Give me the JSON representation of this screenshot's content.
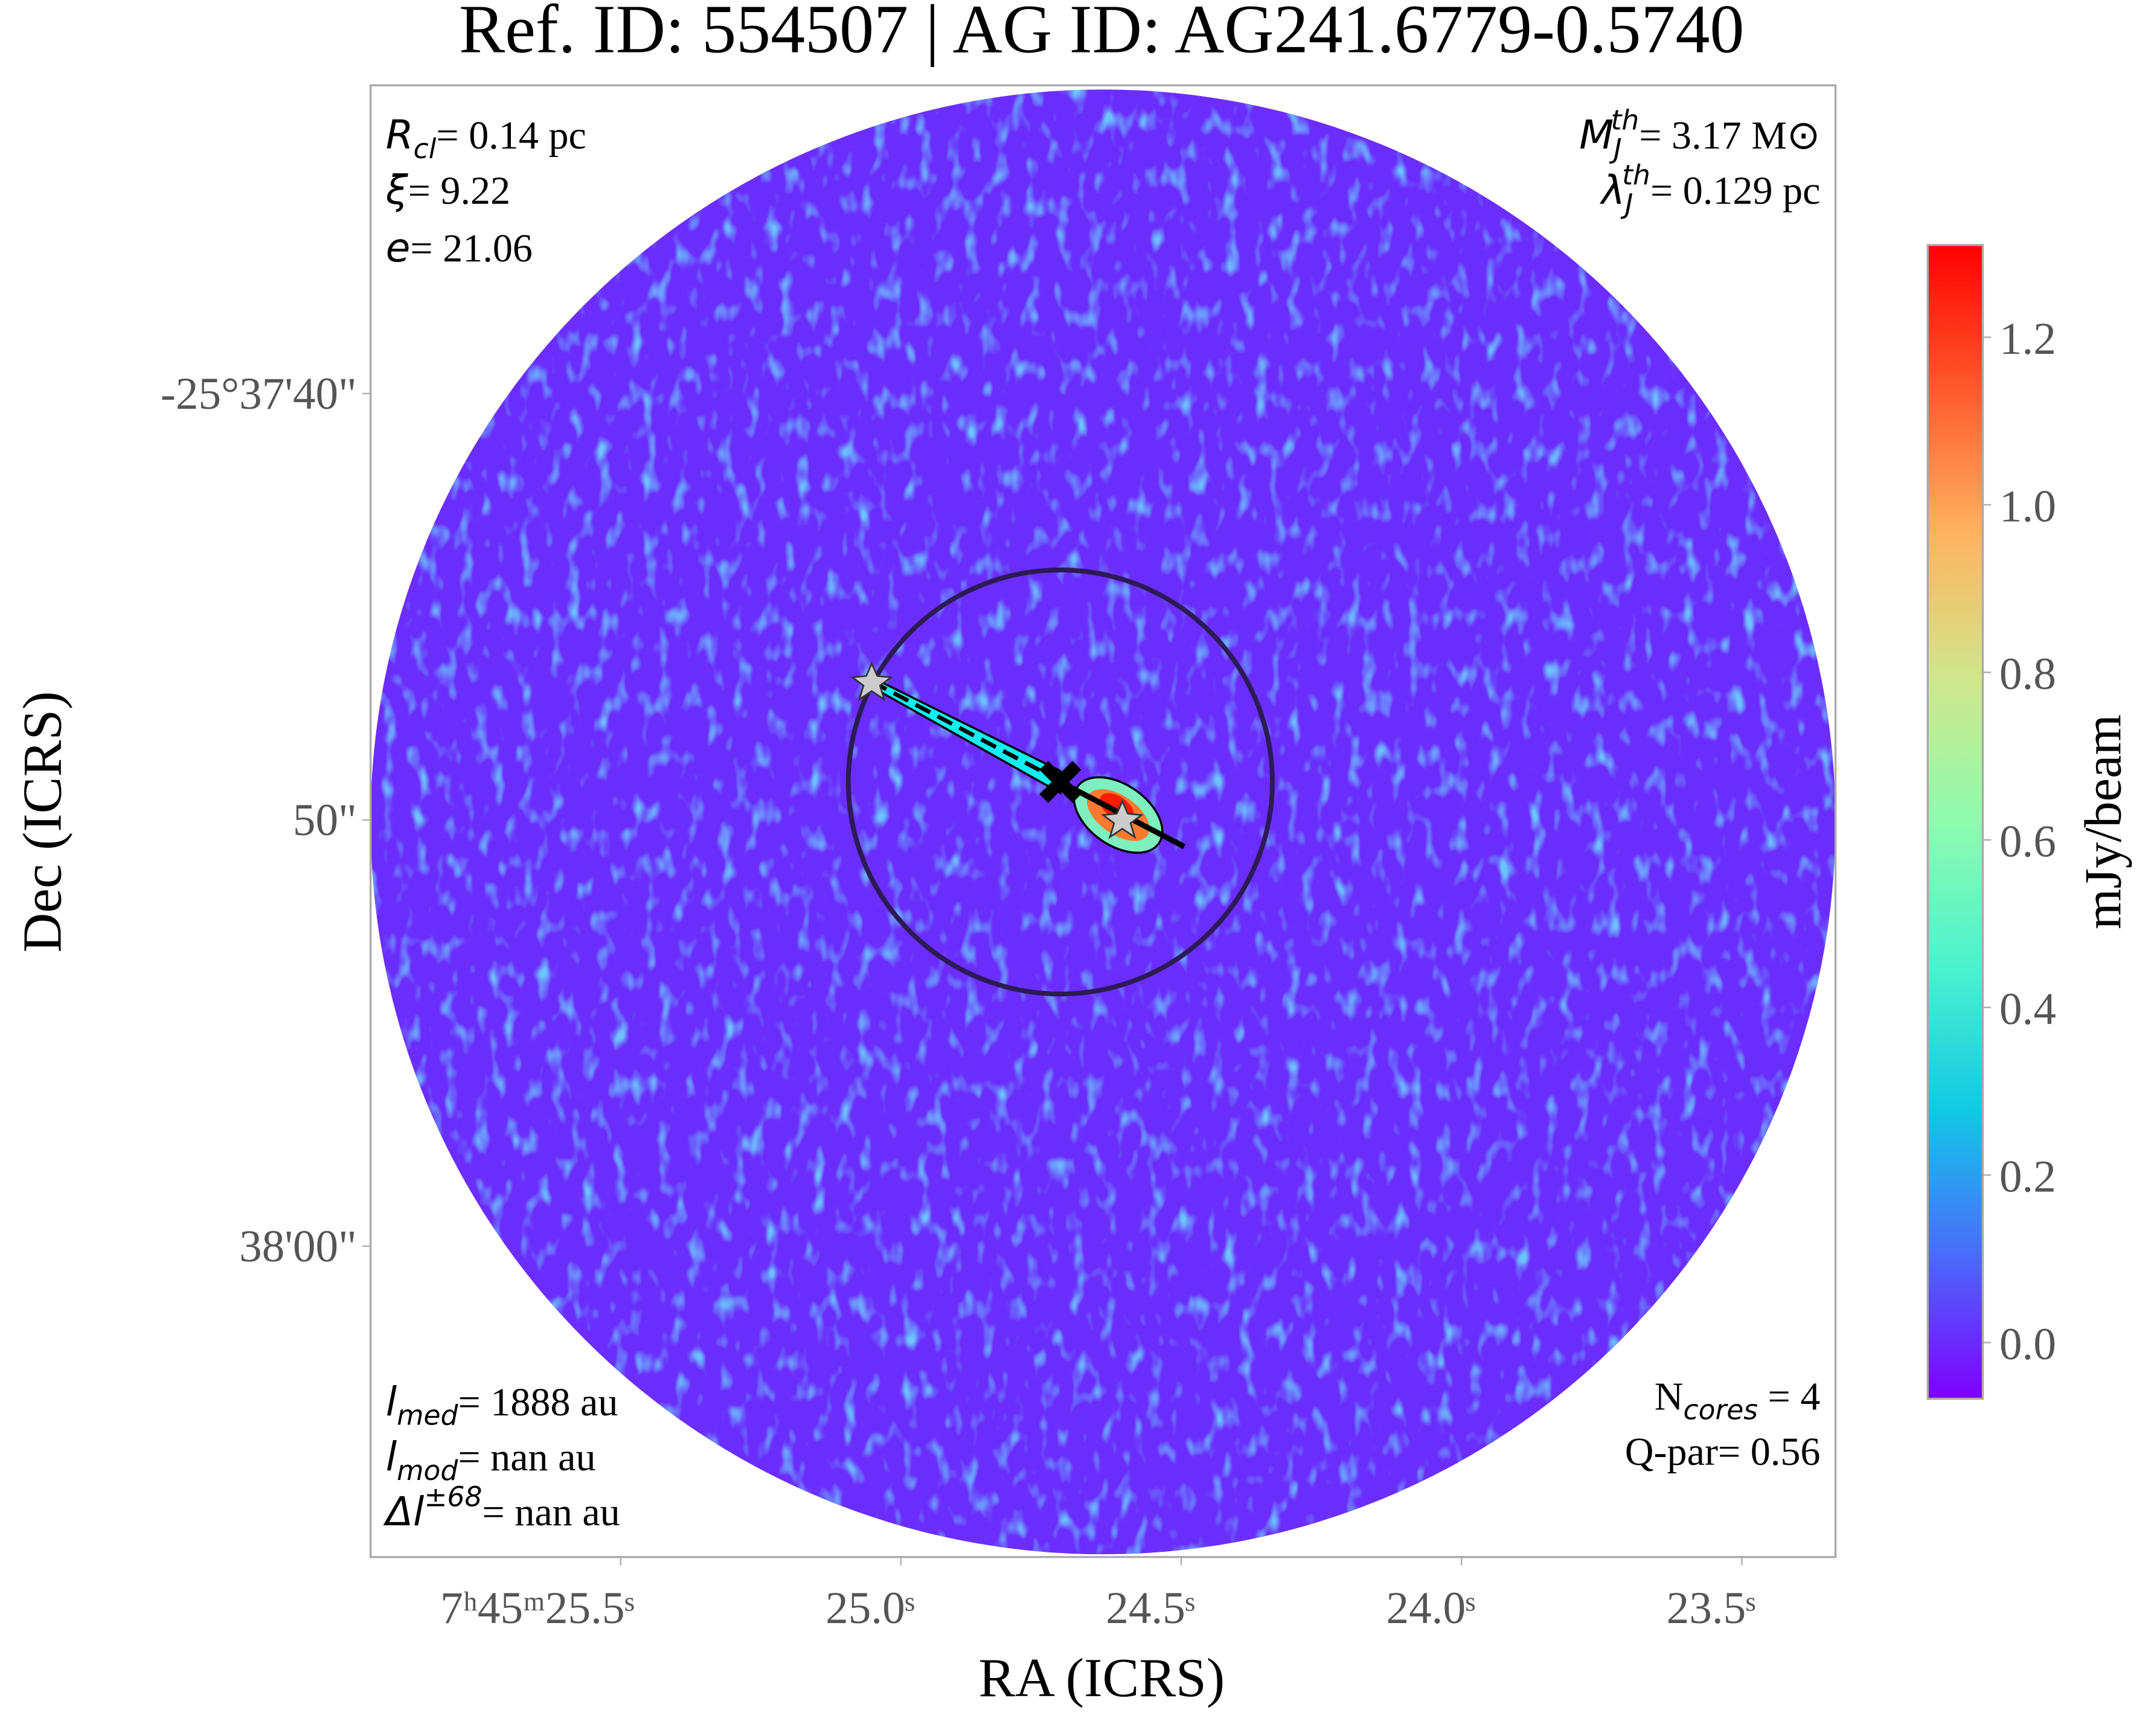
{
  "chart_data": {
    "type": "image",
    "title": "Ref. ID: 554507 | AG ID: AG241.6779-0.5740",
    "xlabel": "RA (ICRS)",
    "ylabel": "Dec (ICRS)",
    "xlim": [
      25.946,
      23.333
    ],
    "xticks": [
      {
        "value": 25.5,
        "label": "7ʰ45ᵐ25.5ˢ"
      },
      {
        "value": 25.0,
        "label": "25.0ˢ"
      },
      {
        "value": 24.5,
        "label": "24.5ˢ"
      },
      {
        "value": 24.0,
        "label": "24.0ˢ"
      },
      {
        "value": 23.5,
        "label": "23.5ˢ"
      }
    ],
    "ylim": [
      67.29,
      32.77
    ],
    "yticks": [
      {
        "value": 40,
        "label": "-25°37'40\""
      },
      {
        "value": 50,
        "label": "50\""
      },
      {
        "value": 60,
        "label": "38'00\""
      }
    ],
    "colorbar": {
      "label": "mJy/beam",
      "lim": [
        -0.067,
        1.31
      ],
      "ticks": [
        {
          "value": 0,
          "label": "0.0"
        },
        0.2,
        0.4,
        0.6,
        0.8,
        {
          "value": 1,
          "label": "1.0"
        },
        1.2
      ],
      "colormap": [
        "#8000ff",
        "#4a6cfb",
        "#12c8e6",
        "#4cf2ce",
        "#8efcb0",
        "#d0e68a",
        "#ffb360",
        "#ff5a2c",
        "#ff0000"
      ]
    },
    "annotations": [
      [
        {
          "text": "R",
          "style": "italic"
        },
        {
          "text": "cl",
          "style": "sub"
        },
        {
          "text": "= 0.14 pc",
          "style": "normal"
        }
      ],
      [
        {
          "text": "ξ",
          "style": "italic"
        },
        {
          "text": "= 9.22",
          "style": "normal"
        }
      ],
      [
        {
          "text": "e",
          "style": "italic"
        },
        {
          "text": "= 21.06",
          "style": "normal"
        }
      ],
      [
        {
          "text": "M",
          "style": "italic"
        },
        {
          "text": "J",
          "style": "sub"
        },
        {
          "text": "th",
          "style": "sup"
        },
        {
          "text": "= 3.17 M⊙",
          "style": "normal"
        }
      ],
      [
        {
          "text": "λ",
          "style": "italic"
        },
        {
          "text": "J",
          "style": "sub"
        },
        {
          "text": "th",
          "style": "sup"
        },
        {
          "text": "= 0.129 pc",
          "style": "normal"
        }
      ],
      [
        {
          "text": "l",
          "style": "italic"
        },
        {
          "text": "med",
          "style": "sub"
        },
        {
          "text": "= 1888 au",
          "style": "normal"
        }
      ],
      [
        {
          "text": "l",
          "style": "italic"
        },
        {
          "text": "mod",
          "style": "sub"
        },
        {
          "text": "= nan au",
          "style": "normal"
        }
      ],
      [
        {
          "text": "Δl",
          "style": "italic"
        },
        {
          "text": "±68",
          "style": "sup"
        },
        {
          "text": "= nan au",
          "style": "normal"
        }
      ],
      [
        {
          "text": "N",
          "style": "normal"
        },
        {
          "text": "cores",
          "style": "sub"
        },
        {
          "text": " = 4",
          "style": "normal"
        }
      ],
      [
        {
          "text": "Q-par= 0.56",
          "style": "normal"
        }
      ]
    ]
  }
}
